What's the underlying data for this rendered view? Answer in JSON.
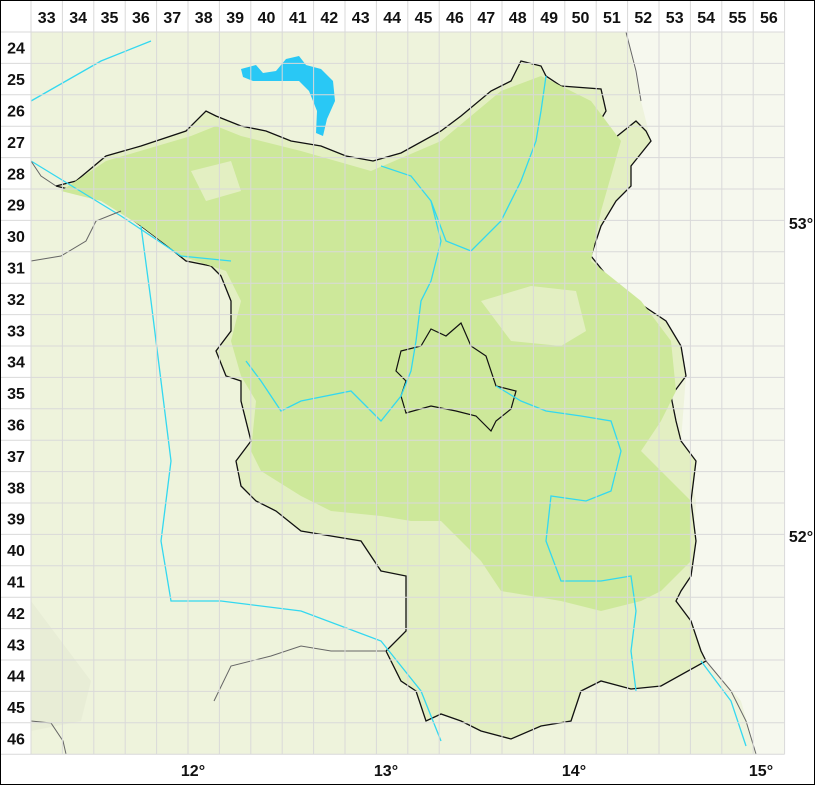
{
  "grid": {
    "column_labels": [
      "33",
      "34",
      "35",
      "36",
      "37",
      "38",
      "39",
      "40",
      "41",
      "42",
      "43",
      "44",
      "45",
      "46",
      "47",
      "48",
      "49",
      "50",
      "51",
      "52",
      "53",
      "54",
      "55",
      "56"
    ],
    "row_labels": [
      "24",
      "25",
      "26",
      "27",
      "28",
      "29",
      "30",
      "31",
      "32",
      "33",
      "34",
      "35",
      "36",
      "37",
      "38",
      "39",
      "40",
      "41",
      "42",
      "43",
      "44",
      "45",
      "46"
    ]
  },
  "longitude_labels": [
    "12°",
    "13°",
    "14°",
    "15°"
  ],
  "latitude_labels": [
    "53°",
    "52°"
  ],
  "colors": {
    "background_land": "#eef3dc",
    "region_fill": "#e3efc2",
    "region_dense": "#cde89a",
    "water": "#33d8f0",
    "lake": "#29c8f5",
    "border": "#111111",
    "grid": "#d9d9d9"
  }
}
